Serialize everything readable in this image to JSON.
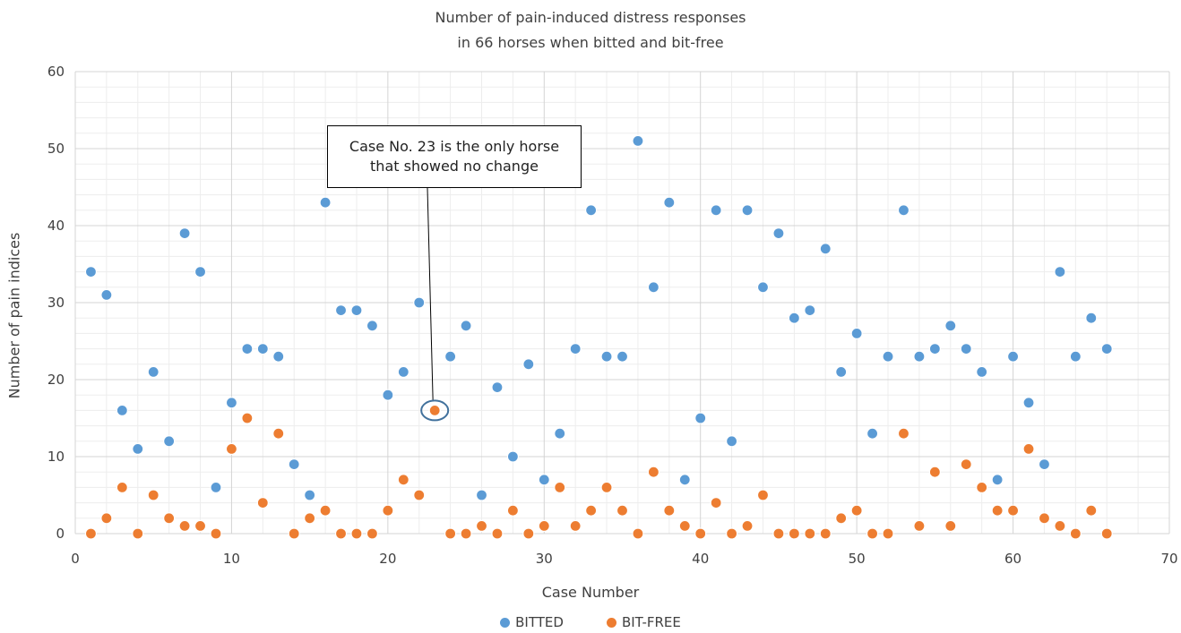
{
  "chart_data": {
    "type": "scatter",
    "title_line1": "Number of pain-induced distress responses",
    "title_line2": "in 66 horses when bitted and bit-free",
    "xlabel": "Case Number",
    "ylabel": "Number of pain indices",
    "xlim": [
      0,
      70
    ],
    "ylim": [
      0,
      60
    ],
    "xticks": [
      0,
      10,
      20,
      30,
      40,
      50,
      60,
      70
    ],
    "yticks": [
      0,
      10,
      20,
      30,
      40,
      50,
      60
    ],
    "grid": true,
    "legend_position": "bottom",
    "x": [
      1,
      2,
      3,
      4,
      5,
      6,
      7,
      8,
      9,
      10,
      11,
      12,
      13,
      14,
      15,
      16,
      17,
      18,
      19,
      20,
      21,
      22,
      23,
      24,
      25,
      26,
      27,
      28,
      29,
      30,
      31,
      32,
      33,
      34,
      35,
      36,
      37,
      38,
      39,
      40,
      41,
      42,
      43,
      44,
      45,
      46,
      47,
      48,
      49,
      50,
      51,
      52,
      53,
      54,
      55,
      56,
      57,
      58,
      59,
      60,
      61,
      62,
      63,
      64,
      65,
      66
    ],
    "series": [
      {
        "name": "BITTED",
        "color": "#5b9bd5",
        "values": [
          34,
          31,
          16,
          11,
          21,
          12,
          39,
          34,
          6,
          17,
          24,
          24,
          23,
          9,
          5,
          43,
          29,
          29,
          27,
          18,
          21,
          30,
          16,
          23,
          27,
          5,
          19,
          10,
          22,
          7,
          13,
          24,
          42,
          23,
          23,
          51,
          32,
          43,
          7,
          15,
          42,
          12,
          42,
          32,
          39,
          28,
          29,
          37,
          21,
          26,
          13,
          23,
          42,
          23,
          24,
          27,
          24,
          21,
          7,
          23,
          17,
          9,
          34,
          23,
          28,
          24
        ]
      },
      {
        "name": "BIT-FREE",
        "color": "#ed7d31",
        "values": [
          0,
          2,
          6,
          0,
          5,
          2,
          1,
          1,
          0,
          11,
          15,
          4,
          13,
          0,
          2,
          3,
          0,
          0,
          0,
          3,
          7,
          5,
          16,
          0,
          0,
          1,
          0,
          3,
          0,
          1,
          6,
          1,
          3,
          6,
          3,
          0,
          8,
          3,
          1,
          0,
          4,
          0,
          1,
          5,
          0,
          0,
          0,
          0,
          2,
          3,
          0,
          0,
          13,
          1,
          8,
          1,
          9,
          6,
          3,
          3,
          11,
          2,
          1,
          0,
          3,
          0
        ]
      }
    ],
    "annotation": {
      "line1": "Case No. 23 is the only horse",
      "line2": "that showed no change",
      "case": 23,
      "value": 16
    }
  }
}
